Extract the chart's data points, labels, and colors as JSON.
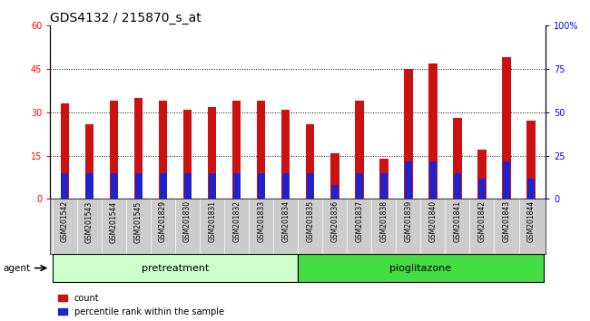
{
  "title": "GDS4132 / 215870_s_at",
  "samples": [
    "GSM201542",
    "GSM201543",
    "GSM201544",
    "GSM201545",
    "GSM201829",
    "GSM201830",
    "GSM201831",
    "GSM201832",
    "GSM201833",
    "GSM201834",
    "GSM201835",
    "GSM201836",
    "GSM201837",
    "GSM201838",
    "GSM201839",
    "GSM201840",
    "GSM201841",
    "GSM201842",
    "GSM201843",
    "GSM201844"
  ],
  "count_values": [
    33,
    26,
    34,
    35,
    34,
    31,
    32,
    34,
    34,
    31,
    26,
    16,
    34,
    14,
    45,
    47,
    28,
    17,
    49,
    27
  ],
  "percentile_values": [
    9,
    9,
    9,
    9,
    9,
    9,
    9,
    9,
    9,
    9,
    9,
    5,
    9,
    9,
    13,
    13,
    9,
    7,
    13,
    7
  ],
  "pretreatment_indices": [
    0,
    1,
    2,
    3,
    4,
    5,
    6,
    7,
    8,
    9
  ],
  "pioglitazone_indices": [
    10,
    11,
    12,
    13,
    14,
    15,
    16,
    17,
    18,
    19
  ],
  "ylim_left": [
    0,
    60
  ],
  "ylim_right": [
    0,
    100
  ],
  "yticks_left": [
    0,
    15,
    30,
    45,
    60
  ],
  "yticks_right": [
    0,
    25,
    50,
    75,
    100
  ],
  "bar_width": 0.35,
  "count_color": "#cc1111",
  "percentile_color": "#2222cc",
  "bg_color": "#cccccc",
  "plot_bg_color": "#ffffff",
  "agent_label": "agent",
  "pretreatment_label": "pretreatment",
  "pioglitazone_label": "pioglitazone",
  "pretreatment_color": "#ccffcc",
  "pioglitazone_color": "#44dd44",
  "legend_count": "count",
  "legend_percentile": "percentile rank within the sample",
  "title_fontsize": 10,
  "axis_fontsize": 8,
  "label_fontsize": 8
}
